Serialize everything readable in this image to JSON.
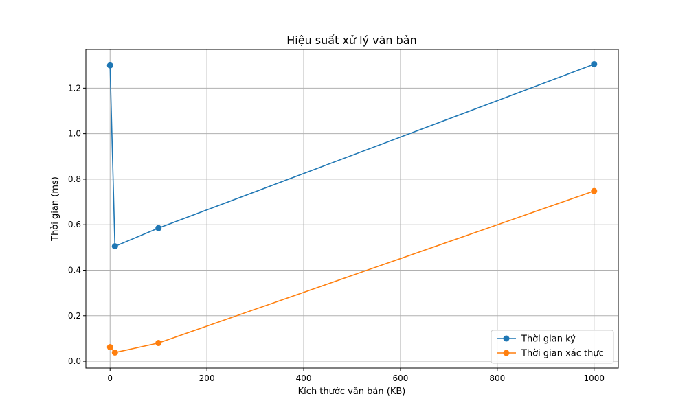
{
  "chart_data": {
    "type": "line",
    "title": "Hiệu suất xử lý văn bản",
    "xlabel": "Kích thước văn bản (KB)",
    "ylabel": "Thời gian (ms)",
    "xlim": [
      -50,
      1050
    ],
    "ylim": [
      -0.03,
      1.37
    ],
    "xticks": [
      0,
      200,
      400,
      600,
      800,
      1000
    ],
    "yticks": [
      0.0,
      0.2,
      0.4,
      0.6,
      0.8,
      1.0,
      1.2
    ],
    "grid": true,
    "legend_position": "lower-right",
    "x": [
      0,
      10,
      100,
      1000
    ],
    "series": [
      {
        "name": "Thời gian ký",
        "color": "#1f77b4",
        "values": [
          1.3,
          0.505,
          0.585,
          1.305
        ]
      },
      {
        "name": "Thời gian xác thực",
        "color": "#ff7f0e",
        "values": [
          0.062,
          0.038,
          0.08,
          0.748
        ]
      }
    ]
  }
}
